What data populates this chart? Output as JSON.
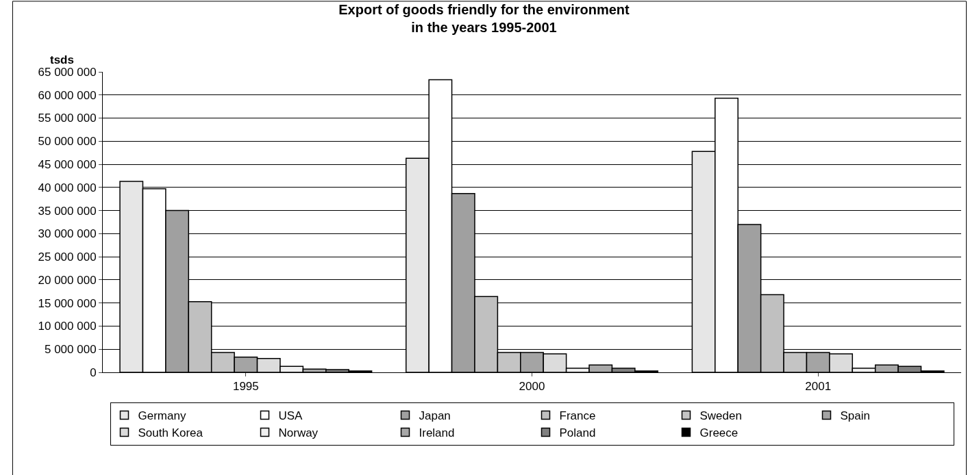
{
  "chart_data": {
    "type": "bar",
    "title": "Export of goods friendly for the environment\nin the years 1995-2001",
    "ylabel": "tsds",
    "categories": [
      "1995",
      "2000",
      "2001"
    ],
    "series": [
      {
        "name": "Germany",
        "color": "#e6e6e6",
        "values": [
          41300000,
          46300000,
          47800000
        ]
      },
      {
        "name": "USA",
        "color": "#ffffff",
        "values": [
          39700000,
          63300000,
          59300000
        ]
      },
      {
        "name": "Japan",
        "color": "#a0a0a0",
        "values": [
          35000000,
          38700000,
          32000000
        ]
      },
      {
        "name": "France",
        "color": "#c0c0c0",
        "values": [
          15300000,
          16400000,
          16800000
        ]
      },
      {
        "name": "Sweden",
        "color": "#c4c4c4",
        "values": [
          4300000,
          4300000,
          4300000
        ]
      },
      {
        "name": "Spain",
        "color": "#a4a4a4",
        "values": [
          3300000,
          4300000,
          4300000
        ]
      },
      {
        "name": "South Korea",
        "color": "#dcdcdc",
        "values": [
          3000000,
          4000000,
          4000000
        ]
      },
      {
        "name": "Norway",
        "color": "#f0f0f0",
        "values": [
          1300000,
          900000,
          900000
        ]
      },
      {
        "name": "Ireland",
        "color": "#a8a8a8",
        "values": [
          700000,
          1600000,
          1600000
        ]
      },
      {
        "name": "Poland",
        "color": "#808080",
        "values": [
          600000,
          900000,
          1300000
        ]
      },
      {
        "name": "Greece",
        "color": "#000000",
        "values": [
          300000,
          300000,
          300000
        ]
      }
    ],
    "ylim": [
      0,
      65000000
    ],
    "yticks": [
      0,
      {
        "value": 5000000,
        "label": "5 000 000"
      },
      {
        "value": 10000000,
        "label": "10 000 000"
      },
      {
        "value": 15000000,
        "label": "15 000 000"
      },
      {
        "value": 20000000,
        "label": "20 000 000"
      },
      {
        "value": 25000000,
        "label": "25 000 000"
      },
      {
        "value": 30000000,
        "label": "30 000 000"
      },
      {
        "value": 35000000,
        "label": "35 000 000"
      },
      {
        "value": 40000000,
        "label": "40 000 000"
      },
      {
        "value": 45000000,
        "label": "45 000 000"
      },
      {
        "value": 50000000,
        "label": "50 000 000"
      },
      {
        "value": 55000000,
        "label": "55 000 000"
      },
      {
        "value": 60000000,
        "label": "60 000 000"
      },
      {
        "value": 65000000,
        "label": "65 000 000"
      }
    ],
    "grid": "y",
    "legend": "bottom"
  }
}
